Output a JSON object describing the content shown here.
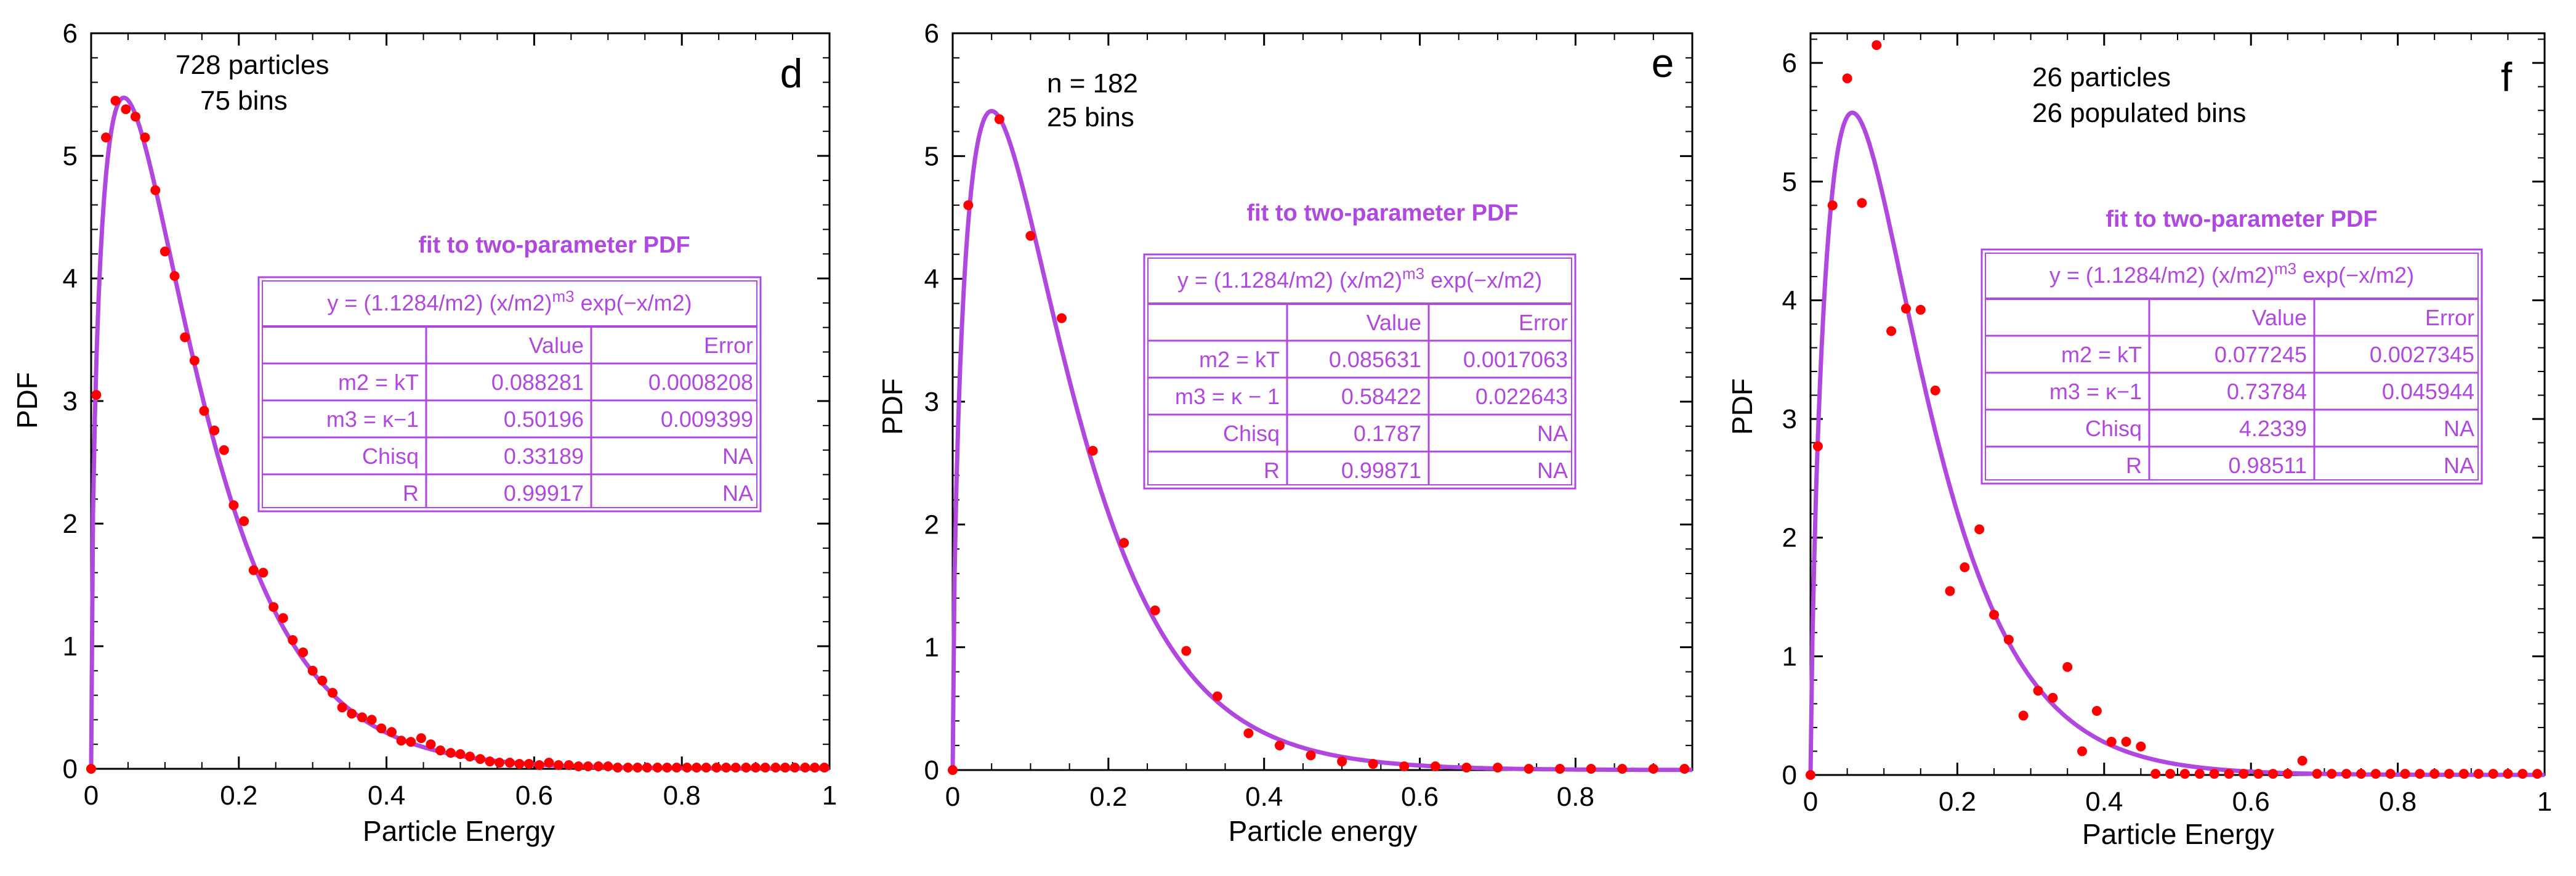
{
  "colors": {
    "fit_curve": "#b048e0",
    "points": "#ff0000",
    "axis": "#000000",
    "table": "#b048e0"
  },
  "chart_data": [
    {
      "type": "scatter",
      "panel_label": "d",
      "xlabel": "Particle Energy",
      "ylabel": "PDF",
      "xlim": [
        0,
        1
      ],
      "ylim": [
        0,
        6
      ],
      "xticks": [
        "0",
        "0.2",
        "0.4",
        "0.6",
        "0.8",
        "1"
      ],
      "yticks": [
        "0",
        "1",
        "2",
        "3",
        "4",
        "5",
        "6"
      ],
      "annotation": [
        "728 particles",
        "75 bins"
      ],
      "fit_title": "fit to two-parameter PDF",
      "fit_params": {
        "m2": 0.088281,
        "m3": 0.50196
      },
      "table": {
        "equation": {
          "prefix": "y = (1.1284/m2) (x/m2)",
          "sup": "m3",
          "suffix": " exp(−x/m2)"
        },
        "headers": [
          "",
          "Value",
          "Error"
        ],
        "rows": [
          [
            "m2 = kT",
            "0.088281",
            "0.0008208"
          ],
          [
            "m3 = κ−1",
            "0.50196",
            "0.009399"
          ],
          [
            "Chisq",
            "0.33189",
            "NA"
          ],
          [
            "R",
            "0.99917",
            "NA"
          ]
        ]
      },
      "series": [
        {
          "name": "data",
          "x": [
            0,
            0.007,
            0.02,
            0.033,
            0.047,
            0.06,
            0.073,
            0.087,
            0.1,
            0.113,
            0.127,
            0.14,
            0.153,
            0.167,
            0.18,
            0.193,
            0.207,
            0.22,
            0.233,
            0.247,
            0.26,
            0.273,
            0.287,
            0.3,
            0.313,
            0.327,
            0.34,
            0.353,
            0.367,
            0.38,
            0.393,
            0.407,
            0.42,
            0.433,
            0.447,
            0.46,
            0.473,
            0.487,
            0.5,
            0.513,
            0.527,
            0.54,
            0.553,
            0.567,
            0.58,
            0.593,
            0.607,
            0.62,
            0.633,
            0.647,
            0.66,
            0.673,
            0.687,
            0.7,
            0.713,
            0.727,
            0.74,
            0.753,
            0.767,
            0.78,
            0.793,
            0.807,
            0.82,
            0.833,
            0.847,
            0.86,
            0.873,
            0.887,
            0.9,
            0.913,
            0.927,
            0.94,
            0.953,
            0.967,
            0.98,
            0.993
          ],
          "y": [
            0,
            3.05,
            5.15,
            5.45,
            5.38,
            5.32,
            5.15,
            4.72,
            4.22,
            4.02,
            3.52,
            3.33,
            2.92,
            2.76,
            2.6,
            2.15,
            2.02,
            1.62,
            1.6,
            1.32,
            1.23,
            1.05,
            0.95,
            0.8,
            0.72,
            0.62,
            0.5,
            0.45,
            0.42,
            0.4,
            0.33,
            0.3,
            0.23,
            0.22,
            0.25,
            0.2,
            0.15,
            0.13,
            0.12,
            0.1,
            0.08,
            0.06,
            0.05,
            0.05,
            0.04,
            0.04,
            0.03,
            0.05,
            0.03,
            0.03,
            0.02,
            0.02,
            0.02,
            0.02,
            0.01,
            0.01,
            0.01,
            0.01,
            0.01,
            0.01,
            0.01,
            0.01,
            0.01,
            0.01,
            0.01,
            0.01,
            0.01,
            0.01,
            0.01,
            0.01,
            0.01,
            0.01,
            0.01,
            0.01,
            0.01,
            0.01
          ]
        }
      ]
    },
    {
      "type": "scatter",
      "panel_label": "e",
      "xlabel": "Particle energy",
      "ylabel": "PDF",
      "xlim": [
        0,
        0.95
      ],
      "ylim": [
        0,
        6
      ],
      "xticks": [
        "0",
        "0.2",
        "0.4",
        "0.6",
        "0.8"
      ],
      "yticks": [
        "0",
        "1",
        "2",
        "3",
        "4",
        "5",
        "6"
      ],
      "annotation": [
        "n = 182",
        "25 bins"
      ],
      "fit_title": "fit to two-parameter PDF",
      "fit_params": {
        "m2": 0.085631,
        "m3": 0.58422
      },
      "table": {
        "equation": {
          "prefix": "y = (1.1284/m2) (x/m2)",
          "sup": "m3",
          "suffix": " exp(−x/m2)"
        },
        "headers": [
          "",
          "Value",
          "Error"
        ],
        "rows": [
          [
            "m2 = kT",
            "0.085631",
            "0.0017063"
          ],
          [
            "m3 = κ − 1",
            "0.58422",
            "0.022643"
          ],
          [
            "Chisq",
            "0.1787",
            "NA"
          ],
          [
            "R",
            "0.99871",
            "NA"
          ]
        ]
      },
      "series": [
        {
          "name": "data",
          "x": [
            0,
            0.02,
            0.06,
            0.1,
            0.14,
            0.18,
            0.22,
            0.26,
            0.3,
            0.34,
            0.38,
            0.42,
            0.46,
            0.5,
            0.54,
            0.58,
            0.62,
            0.66,
            0.7,
            0.74,
            0.78,
            0.82,
            0.86,
            0.9,
            0.94
          ],
          "y": [
            0,
            4.6,
            5.3,
            4.35,
            3.68,
            2.6,
            1.85,
            1.3,
            0.97,
            0.6,
            0.3,
            0.2,
            0.12,
            0.07,
            0.05,
            0.03,
            0.03,
            0.02,
            0.02,
            0.01,
            0.01,
            0.01,
            0.01,
            0.01,
            0.01
          ]
        }
      ]
    },
    {
      "type": "scatter",
      "panel_label": "f",
      "xlabel": "Particle Energy",
      "ylabel": "PDF",
      "xlim": [
        0,
        1
      ],
      "ylim": [
        0,
        6.25
      ],
      "xticks": [
        "0",
        "0.2",
        "0.4",
        "0.6",
        "0.8",
        "1"
      ],
      "yticks": [
        "0",
        "1",
        "2",
        "3",
        "4",
        "5",
        "6"
      ],
      "annotation": [
        "26 particles",
        "26 populated bins"
      ],
      "fit_title": "fit to two-parameter PDF",
      "fit_params": {
        "m2": 0.077245,
        "m3": 0.73784
      },
      "table": {
        "equation": {
          "prefix": "y = (1.1284/m2) (x/m2)",
          "sup": "m3",
          "suffix": " exp(−x/m2)"
        },
        "headers": [
          "",
          "Value",
          "Error"
        ],
        "rows": [
          [
            "m2 = kT",
            "0.077245",
            "0.0027345"
          ],
          [
            "m3 = κ−1",
            "0.73784",
            "0.045944"
          ],
          [
            "Chisq",
            "4.2339",
            "NA"
          ],
          [
            "R",
            "0.98511",
            "NA"
          ]
        ]
      },
      "series": [
        {
          "name": "data",
          "x": [
            0,
            0.01,
            0.03,
            0.05,
            0.07,
            0.09,
            0.11,
            0.13,
            0.15,
            0.17,
            0.19,
            0.21,
            0.23,
            0.25,
            0.27,
            0.29,
            0.31,
            0.33,
            0.35,
            0.37,
            0.39,
            0.41,
            0.43,
            0.45,
            0.47,
            0.49,
            0.51,
            0.53,
            0.55,
            0.57,
            0.59,
            0.61,
            0.63,
            0.65,
            0.67,
            0.69,
            0.71,
            0.73,
            0.75,
            0.77,
            0.79,
            0.81,
            0.83,
            0.85,
            0.87,
            0.89,
            0.91,
            0.93,
            0.95,
            0.97,
            0.99
          ],
          "y": [
            0,
            2.77,
            4.8,
            5.87,
            4.82,
            6.15,
            3.74,
            3.93,
            3.92,
            3.24,
            1.55,
            1.75,
            2.07,
            1.35,
            1.14,
            0.5,
            0.71,
            0.65,
            0.91,
            0.2,
            0.54,
            0.28,
            0.28,
            0.24,
            0.01,
            0.01,
            0.01,
            0.01,
            0.01,
            0.01,
            0.01,
            0.01,
            0.01,
            0.01,
            0.12,
            0.01,
            0.01,
            0.01,
            0.01,
            0.01,
            0.01,
            0.01,
            0.01,
            0.01,
            0.01,
            0.01,
            0.01,
            0.01,
            0.01,
            0.01,
            0.01
          ]
        }
      ]
    }
  ]
}
